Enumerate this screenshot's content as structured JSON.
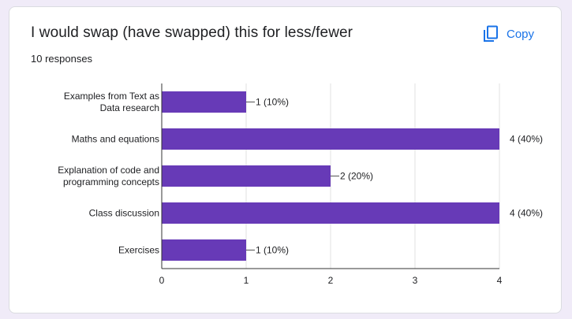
{
  "card": {
    "title": "I would swap (have swapped) this for less/fewer",
    "responses": "10 responses",
    "copy_label": "Copy",
    "copy_icon": "copy-icon"
  },
  "colors": {
    "bar": "#673ab7",
    "accent": "#1a73e8",
    "grid": "#e0e0e0",
    "axis": "#333333",
    "text": "#202124"
  },
  "chart_data": {
    "type": "bar",
    "orientation": "horizontal",
    "title": "I would swap (have swapped) this for less/fewer",
    "categories": [
      [
        "Examples from Text as",
        "Data research"
      ],
      [
        "Maths and equations"
      ],
      [
        "Explanation of code and",
        "programming concepts"
      ],
      [
        "Class discussion"
      ],
      [
        "Exercises"
      ]
    ],
    "values": [
      1,
      4,
      2,
      4,
      1
    ],
    "data_labels": [
      "1 (10%)",
      "4 (40%)",
      "2 (20%)",
      "4 (40%)",
      "1 (10%)"
    ],
    "xlim": [
      0,
      4
    ],
    "xticks": [
      "0",
      "1",
      "2",
      "3",
      "4"
    ],
    "grid": true,
    "xlabel": "",
    "ylabel": ""
  }
}
